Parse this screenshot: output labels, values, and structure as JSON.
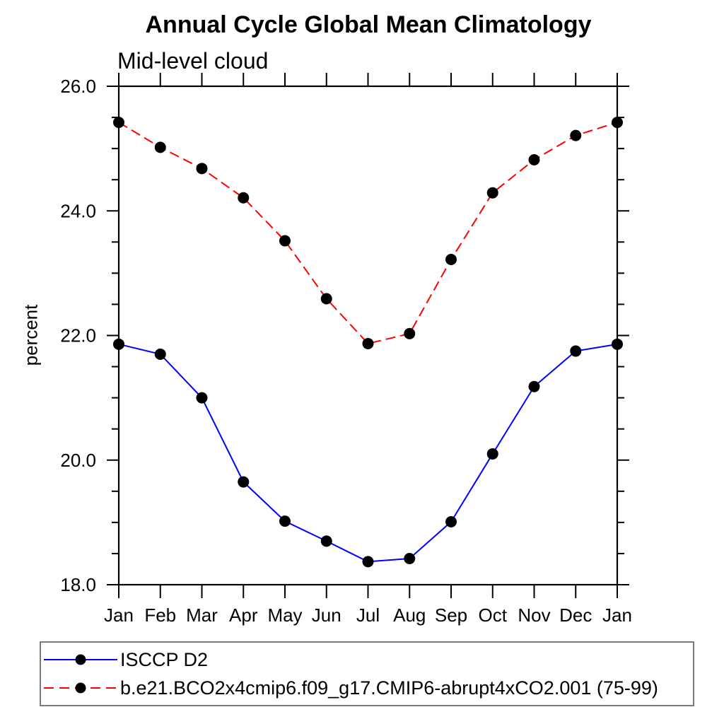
{
  "chart_data": {
    "type": "line",
    "title": "Annual Cycle Global Mean Climatology",
    "subtitle": "Mid-level cloud",
    "ylabel": "percent",
    "xlabel": "",
    "categories": [
      "Jan",
      "Feb",
      "Mar",
      "Apr",
      "May",
      "Jun",
      "Jul",
      "Aug",
      "Sep",
      "Oct",
      "Nov",
      "Dec",
      "Jan"
    ],
    "ylim": [
      18.0,
      26.0
    ],
    "yticks": [
      18.0,
      20.0,
      22.0,
      24.0,
      26.0
    ],
    "ytick_labels": [
      "18.0",
      "20.0",
      "22.0",
      "24.0",
      "26.0"
    ],
    "ytick_minor_step": 0.5,
    "grid": "off",
    "legend_position": "bottom-left-box",
    "marker": "filled-black-circle",
    "series": [
      {
        "name": "ISCCP D2",
        "color": "#0000ff",
        "line_style": "solid",
        "values": [
          21.86,
          21.7,
          21.0,
          19.65,
          19.02,
          18.7,
          18.37,
          18.42,
          19.01,
          20.1,
          21.18,
          21.75,
          21.86
        ]
      },
      {
        "name": "b.e21.BCO2x4cmip6.f09_g17.CMIP6-abrupt4xCO2.001 (75-99)",
        "color": "#ff0000",
        "line_style": "dashed",
        "values": [
          25.42,
          25.02,
          24.68,
          24.21,
          23.52,
          22.59,
          21.87,
          22.03,
          23.22,
          24.29,
          24.82,
          25.21,
          25.42
        ]
      }
    ],
    "marker_color": "#000000",
    "axis_color": "#000000"
  }
}
